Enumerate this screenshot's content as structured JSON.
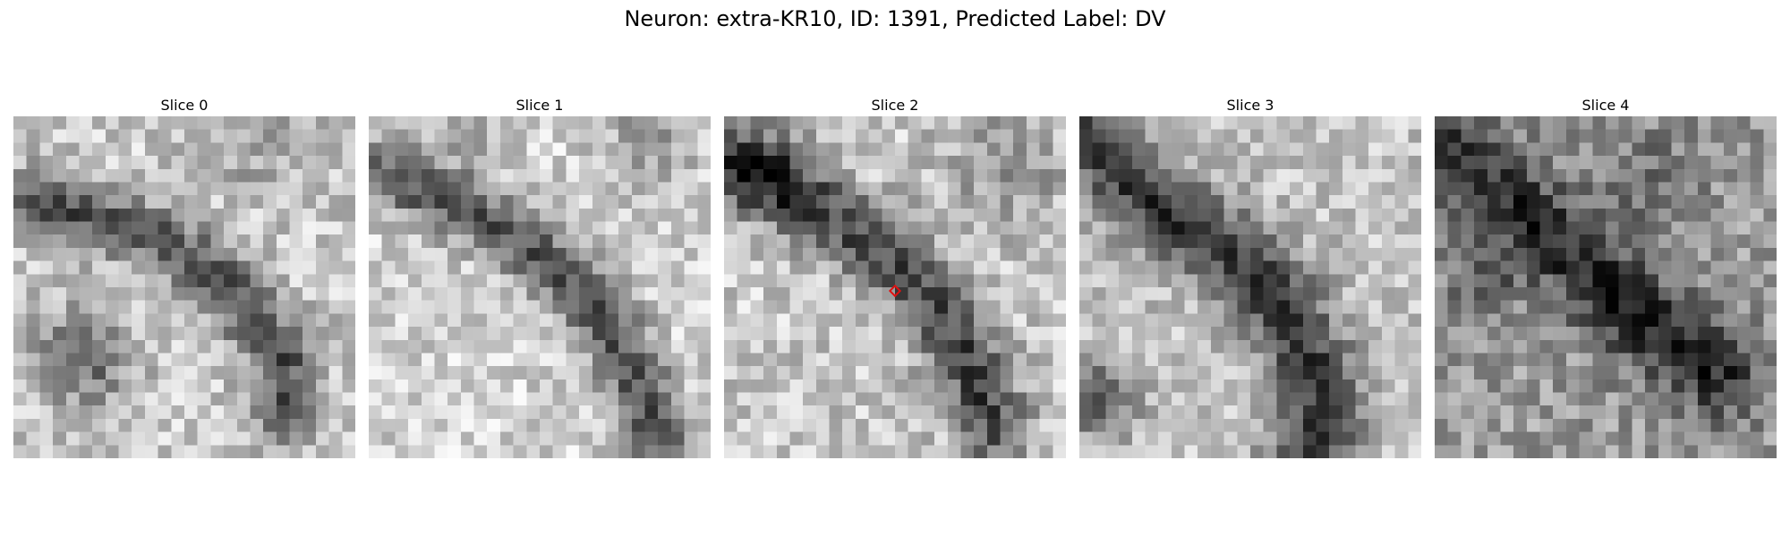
{
  "figure": {
    "title": "Neuron: extra-KR10, ID: 1391, Predicted Label: DV"
  },
  "marker_color": "#e01010",
  "slices": [
    {
      "title": "Slice 0"
    },
    {
      "title": "Slice 1"
    },
    {
      "title": "Slice 2",
      "has_marker": true
    },
    {
      "title": "Slice 3"
    },
    {
      "title": "Slice 4"
    }
  ]
}
